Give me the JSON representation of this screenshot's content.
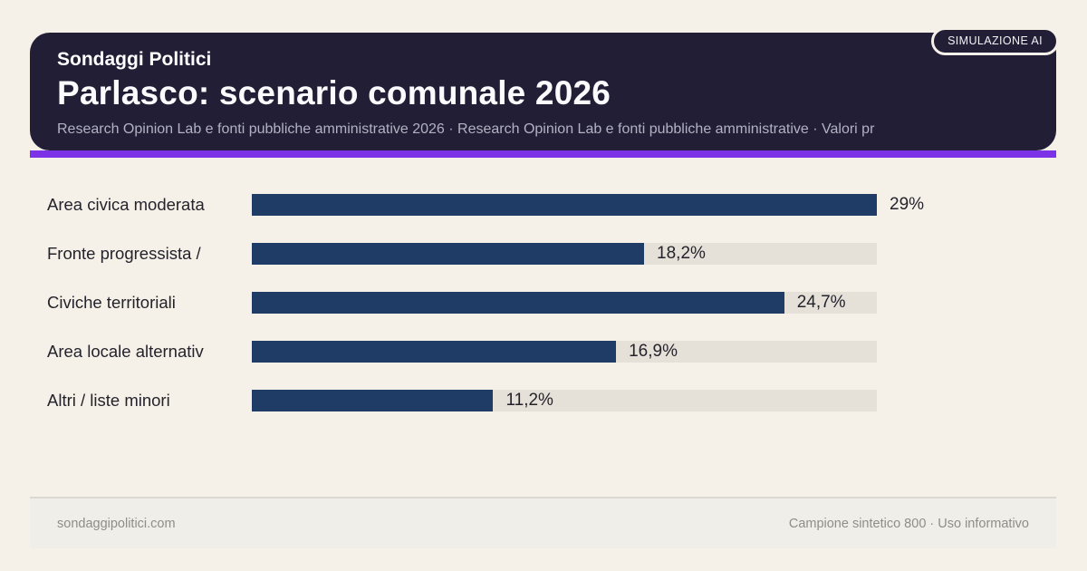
{
  "colors": {
    "page_bg": "#f5f1e8",
    "card_bg": "#211e35",
    "accent": "#7c33e8",
    "bar": "#1f3c66",
    "track": "#e5e1d9"
  },
  "header": {
    "badge": "SIMULAZIONE AI",
    "kicker": "Sondaggi Politici",
    "title": "Parlasco: scenario comunale 2026",
    "subtitle": "Research Opinion Lab e fonti pubbliche amministrative 2026 · Research Opinion Lab e fonti pubbliche amministrative · Valori pr"
  },
  "chart_data": {
    "type": "bar",
    "orientation": "horizontal",
    "categories": [
      "Area civica moderata",
      "Fronte progressista /",
      "Civiche territoriali",
      "Area locale alternativ",
      "Altri / liste minori"
    ],
    "values": [
      29,
      18.2,
      24.7,
      16.9,
      11.2
    ],
    "value_labels": [
      "29%",
      "18,2%",
      "24,7%",
      "16,9%",
      "11,2%"
    ],
    "max_value": 29,
    "unit": "%",
    "grid": false,
    "legend": false,
    "bar_color": "#1f3c66",
    "track_color": "#e5e1d9"
  },
  "footer": {
    "left": "sondaggipolitici.com",
    "right": "Campione sintetico 800 · Uso informativo"
  }
}
